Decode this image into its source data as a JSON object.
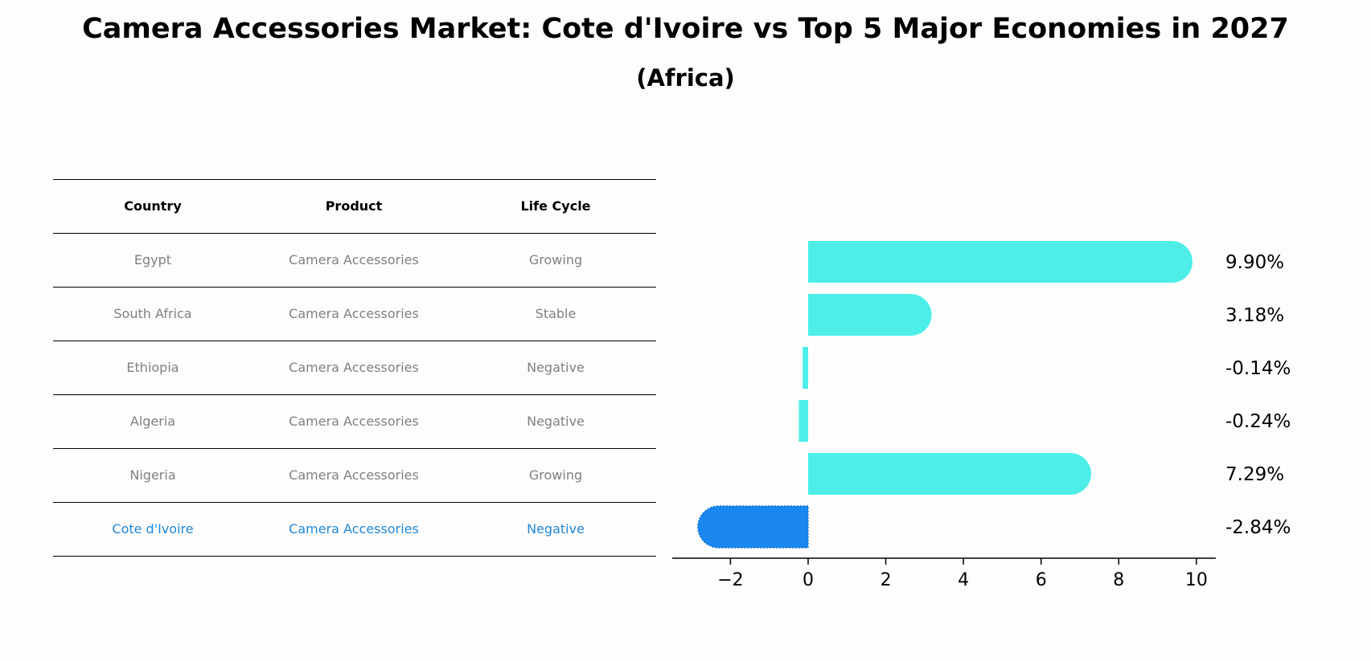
{
  "title": "Camera Accessories Market: Cote d'Ivoire vs Top 5 Major Economies in 2027",
  "subtitle": "(Africa)",
  "table": {
    "headers": [
      "Country",
      "Product",
      "Life Cycle"
    ],
    "rows": [
      [
        "Egypt",
        "Camera Accessories",
        "Growing"
      ],
      [
        "South Africa",
        "Camera Accessories",
        "Stable"
      ],
      [
        "Ethiopia",
        "Camera Accessories",
        "Negative"
      ],
      [
        "Algeria",
        "Camera Accessories",
        "Negative"
      ],
      [
        "Nigeria",
        "Camera Accessories",
        "Growing"
      ],
      [
        "Cote d'Ivoire",
        "Camera Accessories",
        "Negative"
      ]
    ],
    "highlight_row": 5
  },
  "colors": {
    "bar": "#4deee8",
    "highlight_bar": "#1a87f0",
    "highlight_text": "#1f86d8",
    "muted_text": "#808080"
  },
  "chart_data": {
    "type": "bar",
    "orientation": "horizontal",
    "categories": [
      "Egypt",
      "South Africa",
      "Ethiopia",
      "Algeria",
      "Nigeria",
      "Cote d'Ivoire"
    ],
    "values": [
      9.9,
      3.18,
      -0.14,
      -0.24,
      7.29,
      -2.84
    ],
    "value_labels": [
      "9.90%",
      "3.18%",
      "-0.14%",
      "-0.24%",
      "7.29%",
      "-2.84%"
    ],
    "highlight_index": 5,
    "xlim": [
      -3.5,
      10.5
    ],
    "xticks": [
      -2,
      0,
      2,
      4,
      6,
      8,
      10
    ],
    "xtick_labels": [
      "−2",
      "0",
      "2",
      "4",
      "6",
      "8",
      "10"
    ],
    "xlabel": "",
    "ylabel": "",
    "grid": false,
    "legend": "none"
  }
}
